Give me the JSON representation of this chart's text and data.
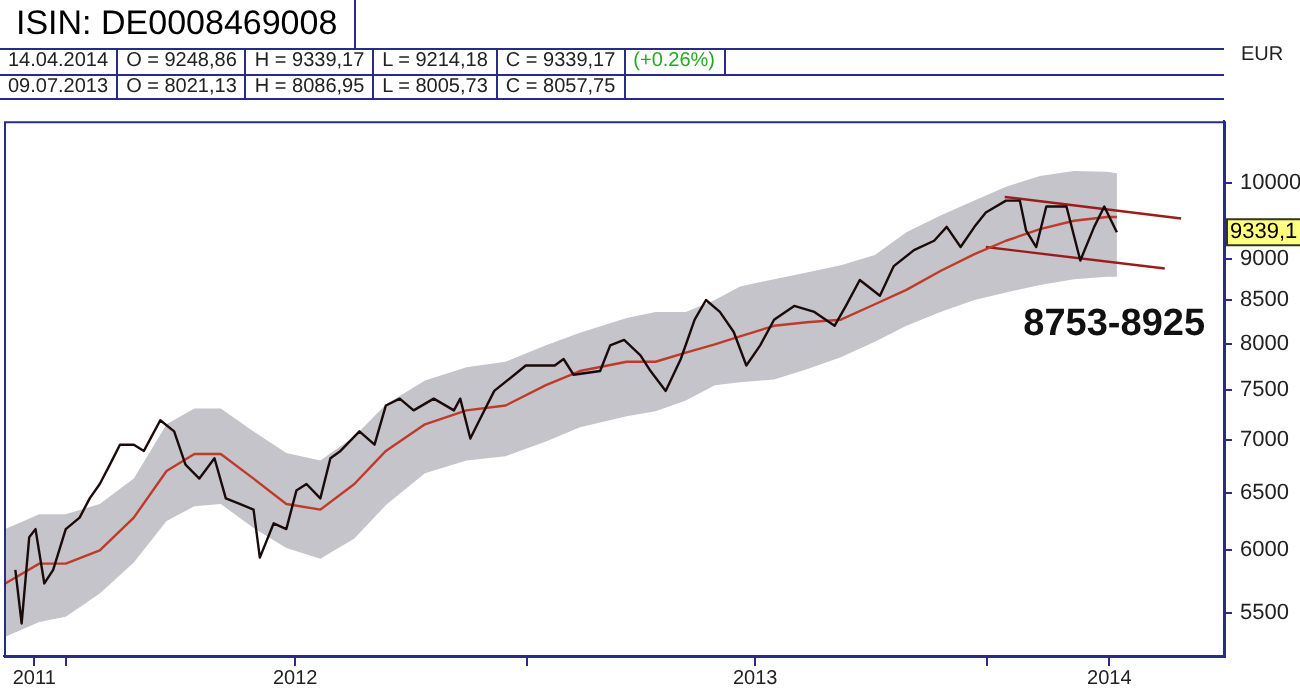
{
  "chart_data": {
    "type": "line",
    "title": "ISIN: DE0008469008",
    "subtitle": "8753-8925",
    "ylabel": "EUR",
    "log": "y",
    "grid": false,
    "legend": false,
    "marker": "none",
    "line_style": "solid",
    "xlim": [
      "2011-11-13",
      "2014-07-08"
    ],
    "xticks": [
      {
        "value": "2011-12-07",
        "label": "2011"
      },
      {
        "value": "2012-01-01",
        "label": null
      },
      {
        "value": "2012-07-01",
        "label": "2012"
      },
      {
        "value": "2013-01-01",
        "label": null
      },
      {
        "value": "2013-07-01",
        "label": "2013"
      },
      {
        "value": "2014-01-01",
        "label": null
      },
      {
        "value": "2014-04-08",
        "label": "2014"
      }
    ],
    "ylim": [
      5180,
      10900
    ],
    "yticks": [
      5500,
      6000,
      6500,
      7000,
      7500,
      8000,
      8500,
      9000,
      10000
    ],
    "series": [
      {
        "color": "#1a0a0a",
        "x": [
          "2011-11-22",
          "2011-11-27",
          "2011-12-03",
          "2011-12-08",
          "2011-12-15",
          "2011-12-22",
          "2012-01-01",
          "2012-01-12",
          "2012-01-20",
          "2012-01-28",
          "2012-02-05",
          "2012-02-13",
          "2012-02-24",
          "2012-03-03",
          "2012-03-16",
          "2012-03-27",
          "2012-04-05",
          "2012-04-16",
          "2012-04-28",
          "2012-05-07",
          "2012-05-18",
          "2012-05-29",
          "2012-06-03",
          "2012-06-14",
          "2012-06-24",
          "2012-07-02",
          "2012-07-10",
          "2012-07-21",
          "2012-07-29",
          "2012-08-06",
          "2012-08-21",
          "2012-09-02",
          "2012-09-11",
          "2012-09-22",
          "2012-10-03",
          "2012-10-19",
          "2012-11-04",
          "2012-11-09",
          "2012-11-17",
          "2012-11-25",
          "2012-12-06",
          "2012-12-22",
          "2012-12-31",
          "2013-01-23",
          "2013-01-30",
          "2013-02-07",
          "2013-02-28",
          "2013-03-08",
          "2013-03-19",
          "2013-04-01",
          "2013-04-09",
          "2013-04-21",
          "2013-05-03",
          "2013-05-14",
          "2013-05-23",
          "2013-06-03",
          "2013-06-14",
          "2013-06-24",
          "2013-07-05",
          "2013-07-16",
          "2013-08-01",
          "2013-08-17",
          "2013-09-02",
          "2013-09-11",
          "2013-09-22",
          "2013-10-08",
          "2013-10-19",
          "2013-11-04",
          "2013-11-20",
          "2013-11-30",
          "2013-12-11",
          "2013-12-22",
          "2013-12-31",
          "2014-01-16",
          "2014-01-27",
          "2014-02-01",
          "2014-02-09",
          "2014-02-17",
          "2014-03-05",
          "2014-03-16",
          "2014-03-27",
          "2014-04-04",
          "2014-04-14"
        ],
        "values": [
          5840,
          5420,
          6110,
          6180,
          5730,
          5840,
          6180,
          6280,
          6450,
          6580,
          6760,
          6950,
          6950,
          6890,
          7190,
          7080,
          6760,
          6630,
          6820,
          6450,
          6400,
          6350,
          5940,
          6230,
          6180,
          6520,
          6580,
          6450,
          6820,
          6890,
          7080,
          6950,
          7340,
          7410,
          7290,
          7410,
          7290,
          7410,
          7010,
          7210,
          7490,
          7660,
          7760,
          7760,
          7830,
          7660,
          7700,
          7980,
          8040,
          7870,
          7700,
          7490,
          7830,
          8270,
          8500,
          8360,
          8130,
          7760,
          7980,
          8270,
          8430,
          8360,
          8200,
          8430,
          8740,
          8550,
          8910,
          9110,
          9230,
          9410,
          9150,
          9410,
          9600,
          9760,
          9760,
          9360,
          9150,
          9680,
          9680,
          8980,
          9410,
          9680,
          9339.17
        ]
      },
      {
        "color": "#c03a2a",
        "x": [
          "2011-11-14",
          "2011-12-11",
          "2012-01-01",
          "2012-01-28",
          "2012-02-24",
          "2012-03-21",
          "2012-04-12",
          "2012-05-03",
          "2012-05-29",
          "2012-06-24",
          "2012-07-21",
          "2012-08-17",
          "2012-09-11",
          "2012-10-12",
          "2012-11-14",
          "2012-12-15",
          "2013-01-16",
          "2013-02-12",
          "2013-03-21",
          "2013-04-13",
          "2013-05-07",
          "2013-05-30",
          "2013-06-19",
          "2013-07-16",
          "2013-08-11",
          "2013-09-07",
          "2013-10-04",
          "2013-10-29",
          "2013-11-25",
          "2013-12-22",
          "2014-01-16",
          "2014-02-12",
          "2014-03-11",
          "2014-04-06",
          "2014-04-14"
        ],
        "values": [
          5730,
          5890,
          5890,
          6000,
          6280,
          6700,
          6860,
          6860,
          6630,
          6400,
          6350,
          6580,
          6890,
          7150,
          7290,
          7340,
          7550,
          7700,
          7800,
          7800,
          7900,
          7990,
          8080,
          8200,
          8240,
          8270,
          8450,
          8620,
          8850,
          9060,
          9230,
          9380,
          9490,
          9540,
          9540
        ],
        "upper": [
          6180,
          6310,
          6310,
          6400,
          6630,
          7150,
          7310,
          7310,
          7080,
          6870,
          6800,
          7030,
          7350,
          7600,
          7740,
          7800,
          7980,
          8120,
          8290,
          8360,
          8360,
          8500,
          8660,
          8750,
          8830,
          8920,
          9050,
          9340,
          9560,
          9760,
          9950,
          10100,
          10170,
          10160,
          10140
        ],
        "lower": [
          5320,
          5430,
          5470,
          5650,
          5900,
          6250,
          6380,
          6400,
          6190,
          6020,
          5930,
          6100,
          6390,
          6680,
          6800,
          6840,
          6980,
          7120,
          7230,
          7280,
          7390,
          7550,
          7580,
          7610,
          7720,
          7850,
          8020,
          8200,
          8360,
          8500,
          8590,
          8680,
          8750,
          8780,
          8780
        ]
      },
      {
        "color": "#9b1c1c",
        "x": [
          "2014-01-15",
          "2014-06-04"
        ],
        "values": [
          9810,
          9520
        ]
      },
      {
        "color": "#9b1c1c",
        "x": [
          "2013-12-31",
          "2014-05-22"
        ],
        "values": [
          9150,
          8880
        ]
      }
    ],
    "annotations": [
      "14.04.2014",
      "O = 9248,86",
      "H = 9339,17",
      "L = 9214,18",
      "C = 9339,17",
      "(+0.26%)",
      "09.07.2013",
      "O = 8021,13",
      "H = 8086,95",
      "L = 8005,73",
      "C = 8057,75",
      {
        "text": "9339,1",
        "y": 9339.1
      }
    ]
  }
}
